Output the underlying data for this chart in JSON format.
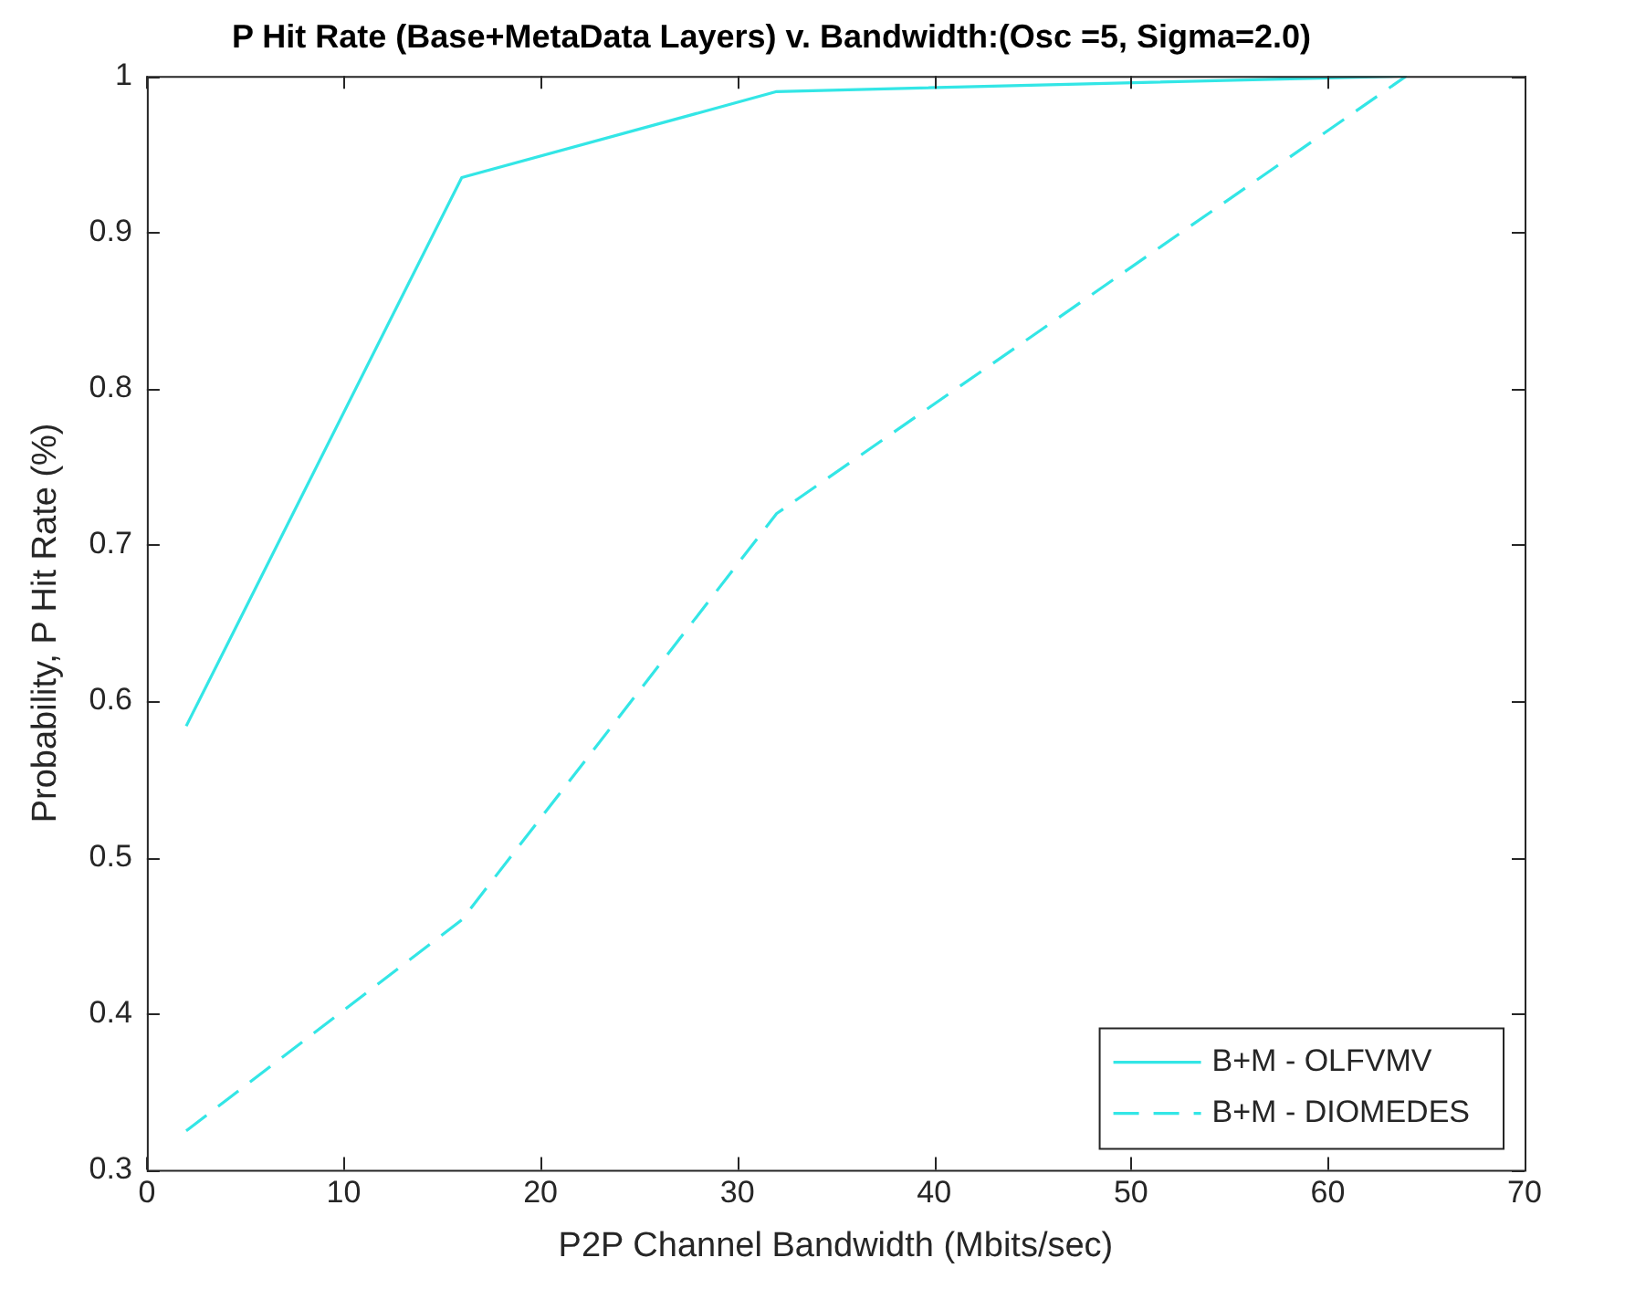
{
  "chart_data": {
    "type": "line",
    "title": "P Hit Rate (Base+MetaData Layers) v. Bandwidth:(Osc =5, Sigma=2.0)",
    "xlabel": "P2P Channel Bandwidth (Mbits/sec)",
    "ylabel": "Probability, P Hit Rate (%)",
    "x": [
      2,
      16,
      32,
      64
    ],
    "series": [
      {
        "name": "B+M - OLFVMV",
        "color": "#33e6e6",
        "values": [
          0.584,
          0.935,
          0.99,
          1.0
        ],
        "line_style": "solid"
      },
      {
        "name": "B+M - DIOMEDES",
        "color": "#33e6e6",
        "values": [
          0.325,
          0.46,
          0.72,
          1.0
        ],
        "line_style": "dashed"
      }
    ],
    "xlim": [
      0,
      70
    ],
    "xticks": [
      0,
      10,
      20,
      30,
      40,
      50,
      60,
      70
    ],
    "ylim": [
      0.3,
      1
    ],
    "yticks": [
      0.3,
      0.4,
      0.5,
      0.6,
      0.7,
      0.8,
      0.9,
      1
    ],
    "grid": false,
    "legend": "bottom right",
    "marker": "none"
  }
}
